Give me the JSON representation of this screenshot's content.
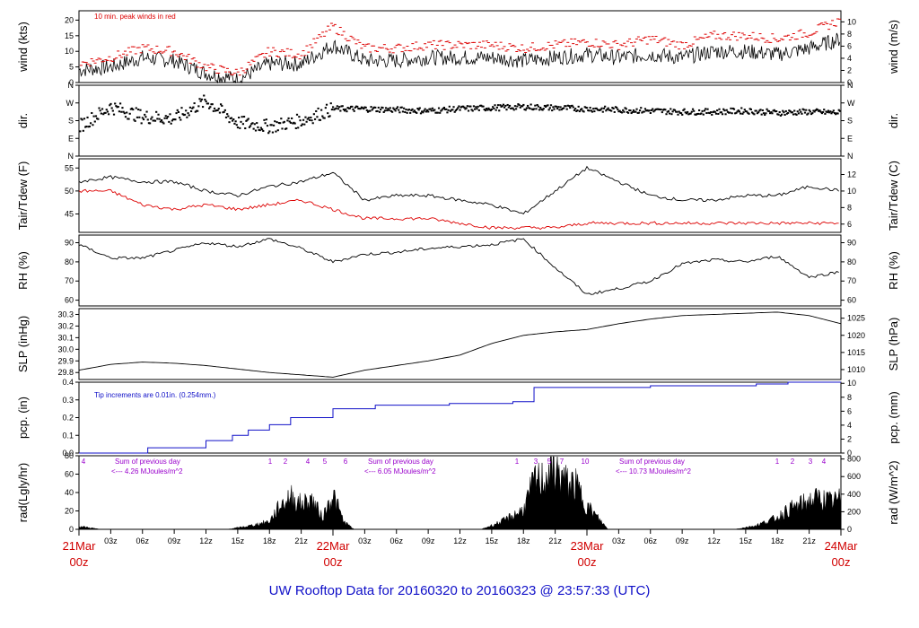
{
  "title": "UW Rooftop Data for 20160320  to  20160323 @ 23:57:33  (UTC)",
  "x_axis": {
    "hour_ticks": [
      "03z",
      "06z",
      "09z",
      "12z",
      "15z",
      "18z",
      "21z",
      "03z",
      "06z",
      "09z",
      "12z",
      "15z",
      "18z",
      "21z",
      "03z",
      "06z",
      "09z",
      "12z",
      "15z",
      "18z",
      "21z"
    ],
    "days": [
      {
        "date": "21Mar",
        "hour": "00z"
      },
      {
        "date": "22Mar",
        "hour": "00z"
      },
      {
        "date": "23Mar",
        "hour": "00z"
      },
      {
        "date": "24Mar",
        "hour": "00z"
      }
    ]
  },
  "panels": [
    {
      "key": "wind",
      "left_label": "wind (kts)",
      "right_label": "wind (m/s)",
      "left_ticks": [
        "0",
        "5",
        "10",
        "15",
        "20"
      ],
      "right_ticks": [
        "0",
        "2",
        "4",
        "6",
        "8",
        "10"
      ],
      "note": "10 min. peak winds in red"
    },
    {
      "key": "dir",
      "left_label": "dir.",
      "right_label": "dir.",
      "left_ticks": [
        "N",
        "E",
        "S",
        "W",
        "N"
      ],
      "right_ticks": [
        "N",
        "E",
        "S",
        "W",
        "N"
      ]
    },
    {
      "key": "temp",
      "left_label": "Tair/Tdew (F)",
      "right_label": "Tair/Tdew (C)",
      "left_ticks": [
        "45",
        "50",
        "55"
      ],
      "right_ticks": [
        "6",
        "8",
        "10",
        "12"
      ]
    },
    {
      "key": "rh",
      "left_label": "RH (%)",
      "right_label": "RH (%)",
      "left_ticks": [
        "60",
        "70",
        "80",
        "90"
      ],
      "right_ticks": [
        "60",
        "70",
        "80",
        "90"
      ]
    },
    {
      "key": "slp",
      "left_label": "SLP (inHg)",
      "right_label": "SLP (hPa)",
      "left_ticks": [
        "29.8",
        "29.9",
        "30.0",
        "30.1",
        "30.2",
        "30.3"
      ],
      "right_ticks": [
        "1010",
        "1015",
        "1020",
        "1025"
      ]
    },
    {
      "key": "pcp",
      "left_label": "pcp. (in)",
      "right_label": "pcp. (mm)",
      "left_ticks": [
        "0.0",
        "0.1",
        "0.2",
        "0.3",
        "0.4"
      ],
      "right_ticks": [
        "0",
        "2",
        "4",
        "6",
        "8",
        "10"
      ],
      "note": "Tip increments are 0.01in. (0.254mm.)"
    },
    {
      "key": "rad",
      "left_label": "rad(Lgly/hr)",
      "right_label": "rad (W/m^2)",
      "left_ticks": [
        "0",
        "20",
        "40",
        "60",
        "80"
      ],
      "right_ticks": [
        "0",
        "200",
        "400",
        "600",
        "800"
      ]
    }
  ],
  "rad_annotations": [
    {
      "line1": "Sum of previous day",
      "line2": "<--- 4.26 MJoules/m^2"
    },
    {
      "line1": "Sum of previous day",
      "line2": "<--- 6.05 MJoules/m^2"
    },
    {
      "line1": "Sum of previous day",
      "line2": "<--- 10.73 MJoules/m^2"
    }
  ],
  "cloud_marks": [
    "4",
    "1",
    "2",
    "4",
    "5",
    "6",
    "1",
    "3",
    "5",
    "7",
    "10",
    "1",
    "2",
    "3",
    "4"
  ],
  "colors": {
    "obs": "#000000",
    "peak": "#dd0000",
    "dew": "#dd0000",
    "pcp": "#1010c8",
    "note": "#9900cc",
    "title": "#1010c8",
    "day": "#d00000"
  },
  "chart_data": {
    "type": "line",
    "x": {
      "start": "2016-03-21 00z",
      "end": "2016-03-24 00z",
      "unit": "hours"
    },
    "series": [
      {
        "name": "wind",
        "unit": "kts",
        "x": [
          0,
          3,
          6,
          9,
          12,
          15,
          18,
          21,
          24,
          27,
          30,
          33,
          36,
          39,
          42,
          45,
          48,
          51,
          54,
          57,
          60,
          63,
          66,
          69,
          72
        ],
        "values": [
          4,
          5,
          8,
          7,
          3,
          1,
          6,
          6,
          12,
          7,
          7,
          8,
          8,
          8,
          7,
          8,
          9,
          8,
          9,
          8,
          10,
          10,
          9,
          11,
          14
        ]
      },
      {
        "name": "peak",
        "unit": "kts",
        "x": [
          0,
          3,
          6,
          9,
          12,
          15,
          18,
          21,
          24,
          27,
          30,
          33,
          36,
          39,
          42,
          45,
          48,
          51,
          54,
          57,
          60,
          63,
          66,
          69,
          72
        ],
        "values": [
          6,
          8,
          11,
          10,
          5,
          3,
          10,
          9,
          18,
          11,
          11,
          12,
          12,
          12,
          11,
          12,
          13,
          12,
          14,
          12,
          15,
          15,
          14,
          16,
          20
        ]
      },
      {
        "name": "dir",
        "unit": "compass",
        "x": [
          0,
          3,
          6,
          9,
          12,
          15,
          18,
          21,
          24,
          27,
          30,
          33,
          36,
          39,
          42,
          45,
          48,
          51,
          54,
          57,
          60,
          63,
          66,
          69,
          72
        ],
        "values": [
          150,
          250,
          200,
          190,
          280,
          170,
          150,
          180,
          240,
          240,
          235,
          230,
          240,
          245,
          250,
          245,
          240,
          235,
          230,
          225,
          225,
          230,
          220,
          225,
          220
        ]
      },
      {
        "name": "Tair",
        "unit": "F",
        "x": [
          0,
          3,
          6,
          9,
          12,
          15,
          18,
          21,
          24,
          27,
          30,
          33,
          36,
          39,
          42,
          45,
          48,
          51,
          54,
          57,
          60,
          63,
          66,
          69,
          72
        ],
        "values": [
          52,
          53,
          52,
          52,
          50,
          49,
          51,
          52,
          54,
          48,
          49,
          49,
          48,
          47,
          45,
          50,
          55,
          52,
          49,
          48,
          48,
          49,
          49,
          51,
          50
        ]
      },
      {
        "name": "Tdew",
        "unit": "F",
        "x": [
          0,
          3,
          6,
          9,
          12,
          15,
          18,
          21,
          24,
          27,
          30,
          33,
          36,
          39,
          42,
          45,
          48,
          51,
          54,
          57,
          60,
          63,
          66,
          69,
          72
        ],
        "values": [
          50,
          50,
          47,
          46,
          47,
          46,
          47,
          48,
          46,
          44,
          44,
          44,
          43,
          42,
          42,
          42,
          43,
          43,
          43,
          43,
          43,
          43,
          43,
          43,
          43
        ]
      },
      {
        "name": "RH",
        "unit": "%",
        "x": [
          0,
          3,
          6,
          9,
          12,
          15,
          18,
          21,
          24,
          27,
          30,
          33,
          36,
          39,
          42,
          45,
          48,
          51,
          54,
          57,
          60,
          63,
          66,
          69,
          72
        ],
        "values": [
          89,
          82,
          82,
          86,
          90,
          88,
          92,
          87,
          80,
          84,
          85,
          87,
          88,
          89,
          92,
          77,
          63,
          66,
          70,
          79,
          81,
          80,
          83,
          72,
          75
        ]
      },
      {
        "name": "SLP",
        "unit": "inHg",
        "x": [
          0,
          3,
          6,
          9,
          12,
          15,
          18,
          21,
          24,
          27,
          30,
          33,
          36,
          39,
          42,
          45,
          48,
          51,
          54,
          57,
          60,
          63,
          66,
          69,
          72
        ],
        "values": [
          29.82,
          29.87,
          29.89,
          29.88,
          29.86,
          29.83,
          29.8,
          29.78,
          29.76,
          29.82,
          29.86,
          29.9,
          29.95,
          30.05,
          30.12,
          30.15,
          30.17,
          30.22,
          30.26,
          30.29,
          30.3,
          30.31,
          30.32,
          30.29,
          30.22
        ]
      },
      {
        "name": "pcp",
        "unit": "in",
        "x": [
          0,
          6,
          6.5,
          12,
          14.5,
          16,
          18,
          20,
          24,
          28,
          35,
          41,
          43,
          46,
          54,
          64,
          67,
          72
        ],
        "values": [
          0.0,
          0.0,
          0.03,
          0.07,
          0.1,
          0.13,
          0.16,
          0.2,
          0.25,
          0.27,
          0.28,
          0.29,
          0.37,
          0.37,
          0.38,
          0.39,
          0.4,
          0.4
        ]
      },
      {
        "name": "rad",
        "unit": "Lgly/hr",
        "x": [
          0,
          1,
          2,
          14,
          16,
          18,
          19,
          20,
          21,
          22,
          23,
          24,
          25,
          26,
          38,
          40,
          42,
          43,
          44,
          45,
          46,
          47,
          48,
          49,
          50,
          62,
          64,
          66,
          67,
          68,
          69,
          70,
          71,
          72
        ],
        "values": [
          4,
          2,
          0,
          0,
          4,
          10,
          30,
          42,
          32,
          38,
          15,
          45,
          10,
          0,
          0,
          10,
          25,
          60,
          65,
          78,
          60,
          55,
          30,
          15,
          0,
          0,
          5,
          15,
          25,
          30,
          36,
          40,
          35,
          38
        ]
      }
    ],
    "xlim": [
      0,
      72
    ],
    "grid": false
  }
}
